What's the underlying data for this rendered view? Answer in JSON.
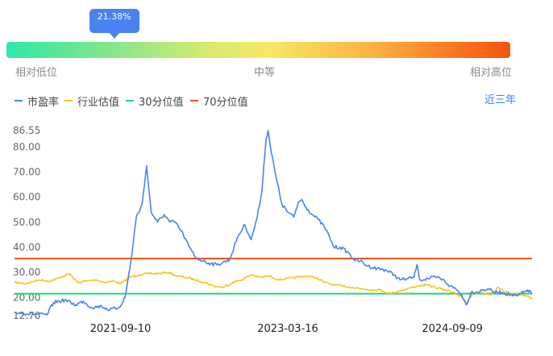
{
  "percentile": {
    "value_label": "21.38%",
    "value": 21.38,
    "low_label": "相对低位",
    "mid_label": "中等",
    "high_label": "相对高位"
  },
  "period": {
    "label": "近三年"
  },
  "colors": {
    "pe": "#4a82f0",
    "industry": "#f5c518",
    "p30": "#1fd67a",
    "p70": "#f0541b"
  },
  "chart_data": {
    "type": "line",
    "title": "",
    "xlabel": "",
    "ylabel": "",
    "ylim": [
      12.7,
      86.55
    ],
    "y_ticks": [
      "12.70",
      "20.00",
      "30.00",
      "40.00",
      "50.00",
      "60.00",
      "70.00",
      "80.00",
      "86.55"
    ],
    "x_ticks": [
      "2021-09-10",
      "2023-03-16",
      "2024-09-09"
    ],
    "x_range": [
      "2020-09-25",
      "2025-05-30"
    ],
    "legend": "top-left",
    "series": [
      {
        "name": "市盈率",
        "key": "pe",
        "points": [
          [
            "2020-09-25",
            14.0
          ],
          [
            "2020-11-15",
            13.5
          ],
          [
            "2021-01-10",
            13.0
          ],
          [
            "2021-02-01",
            18.0
          ],
          [
            "2021-03-10",
            19.0
          ],
          [
            "2021-04-15",
            17.0
          ],
          [
            "2021-05-10",
            18.5
          ],
          [
            "2021-06-05",
            16.0
          ],
          [
            "2021-07-10",
            16.5
          ],
          [
            "2021-08-05",
            15.0
          ],
          [
            "2021-09-05",
            16.0
          ],
          [
            "2021-09-25",
            20.0
          ],
          [
            "2021-10-15",
            35.0
          ],
          [
            "2021-11-01",
            52.0
          ],
          [
            "2021-11-20",
            57.0
          ],
          [
            "2021-12-05",
            72.5
          ],
          [
            "2021-12-20",
            54.0
          ],
          [
            "2022-01-10",
            50.0
          ],
          [
            "2022-02-01",
            53.0
          ],
          [
            "2022-02-20",
            50.0
          ],
          [
            "2022-03-10",
            50.0
          ],
          [
            "2022-04-05",
            45.0
          ],
          [
            "2022-04-25",
            40.0
          ],
          [
            "2022-05-15",
            36.0
          ],
          [
            "2022-06-10",
            34.5
          ],
          [
            "2022-07-05",
            33.5
          ],
          [
            "2022-07-25",
            33.0
          ],
          [
            "2022-08-15",
            34.0
          ],
          [
            "2022-09-05",
            35.0
          ],
          [
            "2022-10-01",
            44.0
          ],
          [
            "2022-10-25",
            49.0
          ],
          [
            "2022-11-15",
            43.0
          ],
          [
            "2022-12-05",
            52.0
          ],
          [
            "2022-12-20",
            62.0
          ],
          [
            "2023-01-03",
            83.0
          ],
          [
            "2023-01-10",
            86.55
          ],
          [
            "2023-01-20",
            78.0
          ],
          [
            "2023-02-05",
            68.0
          ],
          [
            "2023-02-25",
            57.0
          ],
          [
            "2023-03-16",
            54.0
          ],
          [
            "2023-04-05",
            52.0
          ],
          [
            "2023-04-20",
            58.0
          ],
          [
            "2023-05-01",
            59.0
          ],
          [
            "2023-05-15",
            56.0
          ],
          [
            "2023-06-05",
            53.0
          ],
          [
            "2023-06-25",
            51.0
          ],
          [
            "2023-07-15",
            48.0
          ],
          [
            "2023-08-01",
            44.0
          ],
          [
            "2023-08-15",
            40.0
          ],
          [
            "2023-09-05",
            40.0
          ],
          [
            "2023-10-01",
            38.0
          ],
          [
            "2023-10-20",
            35.0
          ],
          [
            "2023-11-10",
            34.5
          ],
          [
            "2023-12-05",
            32.5
          ],
          [
            "2024-01-05",
            31.5
          ],
          [
            "2024-02-01",
            31.0
          ],
          [
            "2024-03-01",
            29.0
          ],
          [
            "2024-03-20",
            27.0
          ],
          [
            "2024-04-15",
            27.5
          ],
          [
            "2024-05-05",
            28.0
          ],
          [
            "2024-05-15",
            33.0
          ],
          [
            "2024-05-25",
            27.0
          ],
          [
            "2024-06-20",
            27.5
          ],
          [
            "2024-07-20",
            28.0
          ],
          [
            "2024-08-15",
            26.5
          ],
          [
            "2024-09-01",
            24.5
          ],
          [
            "2024-09-20",
            23.5
          ],
          [
            "2024-10-10",
            21.0
          ],
          [
            "2024-10-25",
            17.0
          ],
          [
            "2024-11-10",
            22.0
          ],
          [
            "2024-12-10",
            22.5
          ],
          [
            "2025-01-05",
            23.5
          ],
          [
            "2025-01-25",
            22.0
          ],
          [
            "2025-02-20",
            22.0
          ],
          [
            "2025-03-20",
            21.0
          ],
          [
            "2025-04-10",
            20.5
          ],
          [
            "2025-05-01",
            22.0
          ],
          [
            "2025-05-15",
            23.0
          ],
          [
            "2025-05-30",
            21.5
          ]
        ]
      },
      {
        "name": "行业估值",
        "key": "industry",
        "points": [
          [
            "2020-09-25",
            26.0
          ],
          [
            "2020-11-01",
            25.5
          ],
          [
            "2020-12-15",
            27.0
          ],
          [
            "2021-01-20",
            26.5
          ],
          [
            "2021-02-25",
            28.0
          ],
          [
            "2021-03-25",
            29.5
          ],
          [
            "2021-04-20",
            26.0
          ],
          [
            "2021-05-20",
            26.5
          ],
          [
            "2021-06-20",
            27.0
          ],
          [
            "2021-07-20",
            26.0
          ],
          [
            "2021-08-20",
            26.5
          ],
          [
            "2021-09-10",
            25.5
          ],
          [
            "2021-10-10",
            28.0
          ],
          [
            "2021-11-10",
            29.0
          ],
          [
            "2021-12-10",
            29.5
          ],
          [
            "2022-01-15",
            29.5
          ],
          [
            "2022-02-15",
            30.0
          ],
          [
            "2022-03-15",
            28.5
          ],
          [
            "2022-04-15",
            28.0
          ],
          [
            "2022-05-15",
            27.0
          ],
          [
            "2022-06-15",
            26.0
          ],
          [
            "2022-07-15",
            24.5
          ],
          [
            "2022-08-15",
            24.0
          ],
          [
            "2022-09-15",
            26.0
          ],
          [
            "2022-10-15",
            27.0
          ],
          [
            "2022-11-15",
            29.0
          ],
          [
            "2022-12-15",
            28.0
          ],
          [
            "2023-01-15",
            28.5
          ],
          [
            "2023-02-15",
            27.0
          ],
          [
            "2023-03-16",
            27.5
          ],
          [
            "2023-04-15",
            28.0
          ],
          [
            "2023-05-15",
            28.5
          ],
          [
            "2023-06-15",
            28.0
          ],
          [
            "2023-07-15",
            26.0
          ],
          [
            "2023-08-15",
            25.0
          ],
          [
            "2023-09-15",
            24.5
          ],
          [
            "2023-10-15",
            24.0
          ],
          [
            "2023-11-15",
            23.5
          ],
          [
            "2023-12-15",
            23.0
          ],
          [
            "2024-01-15",
            23.0
          ],
          [
            "2024-02-15",
            21.5
          ],
          [
            "2024-03-15",
            22.5
          ],
          [
            "2024-04-15",
            23.5
          ],
          [
            "2024-05-15",
            24.5
          ],
          [
            "2024-06-15",
            25.0
          ],
          [
            "2024-07-15",
            24.0
          ],
          [
            "2024-08-15",
            23.0
          ],
          [
            "2024-09-15",
            22.0
          ],
          [
            "2024-10-10",
            20.0
          ],
          [
            "2024-10-25",
            17.5
          ],
          [
            "2024-11-15",
            21.5
          ],
          [
            "2024-12-15",
            22.0
          ],
          [
            "2025-01-15",
            21.0
          ],
          [
            "2025-02-05",
            24.0
          ],
          [
            "2025-02-25",
            22.5
          ],
          [
            "2025-03-25",
            21.5
          ],
          [
            "2025-04-20",
            21.0
          ],
          [
            "2025-05-10",
            20.5
          ],
          [
            "2025-05-30",
            19.5
          ]
        ]
      },
      {
        "name": "30分位值",
        "key": "p30",
        "constant": 21.5
      },
      {
        "name": "70分位值",
        "key": "p70",
        "constant": 35.5
      }
    ]
  }
}
